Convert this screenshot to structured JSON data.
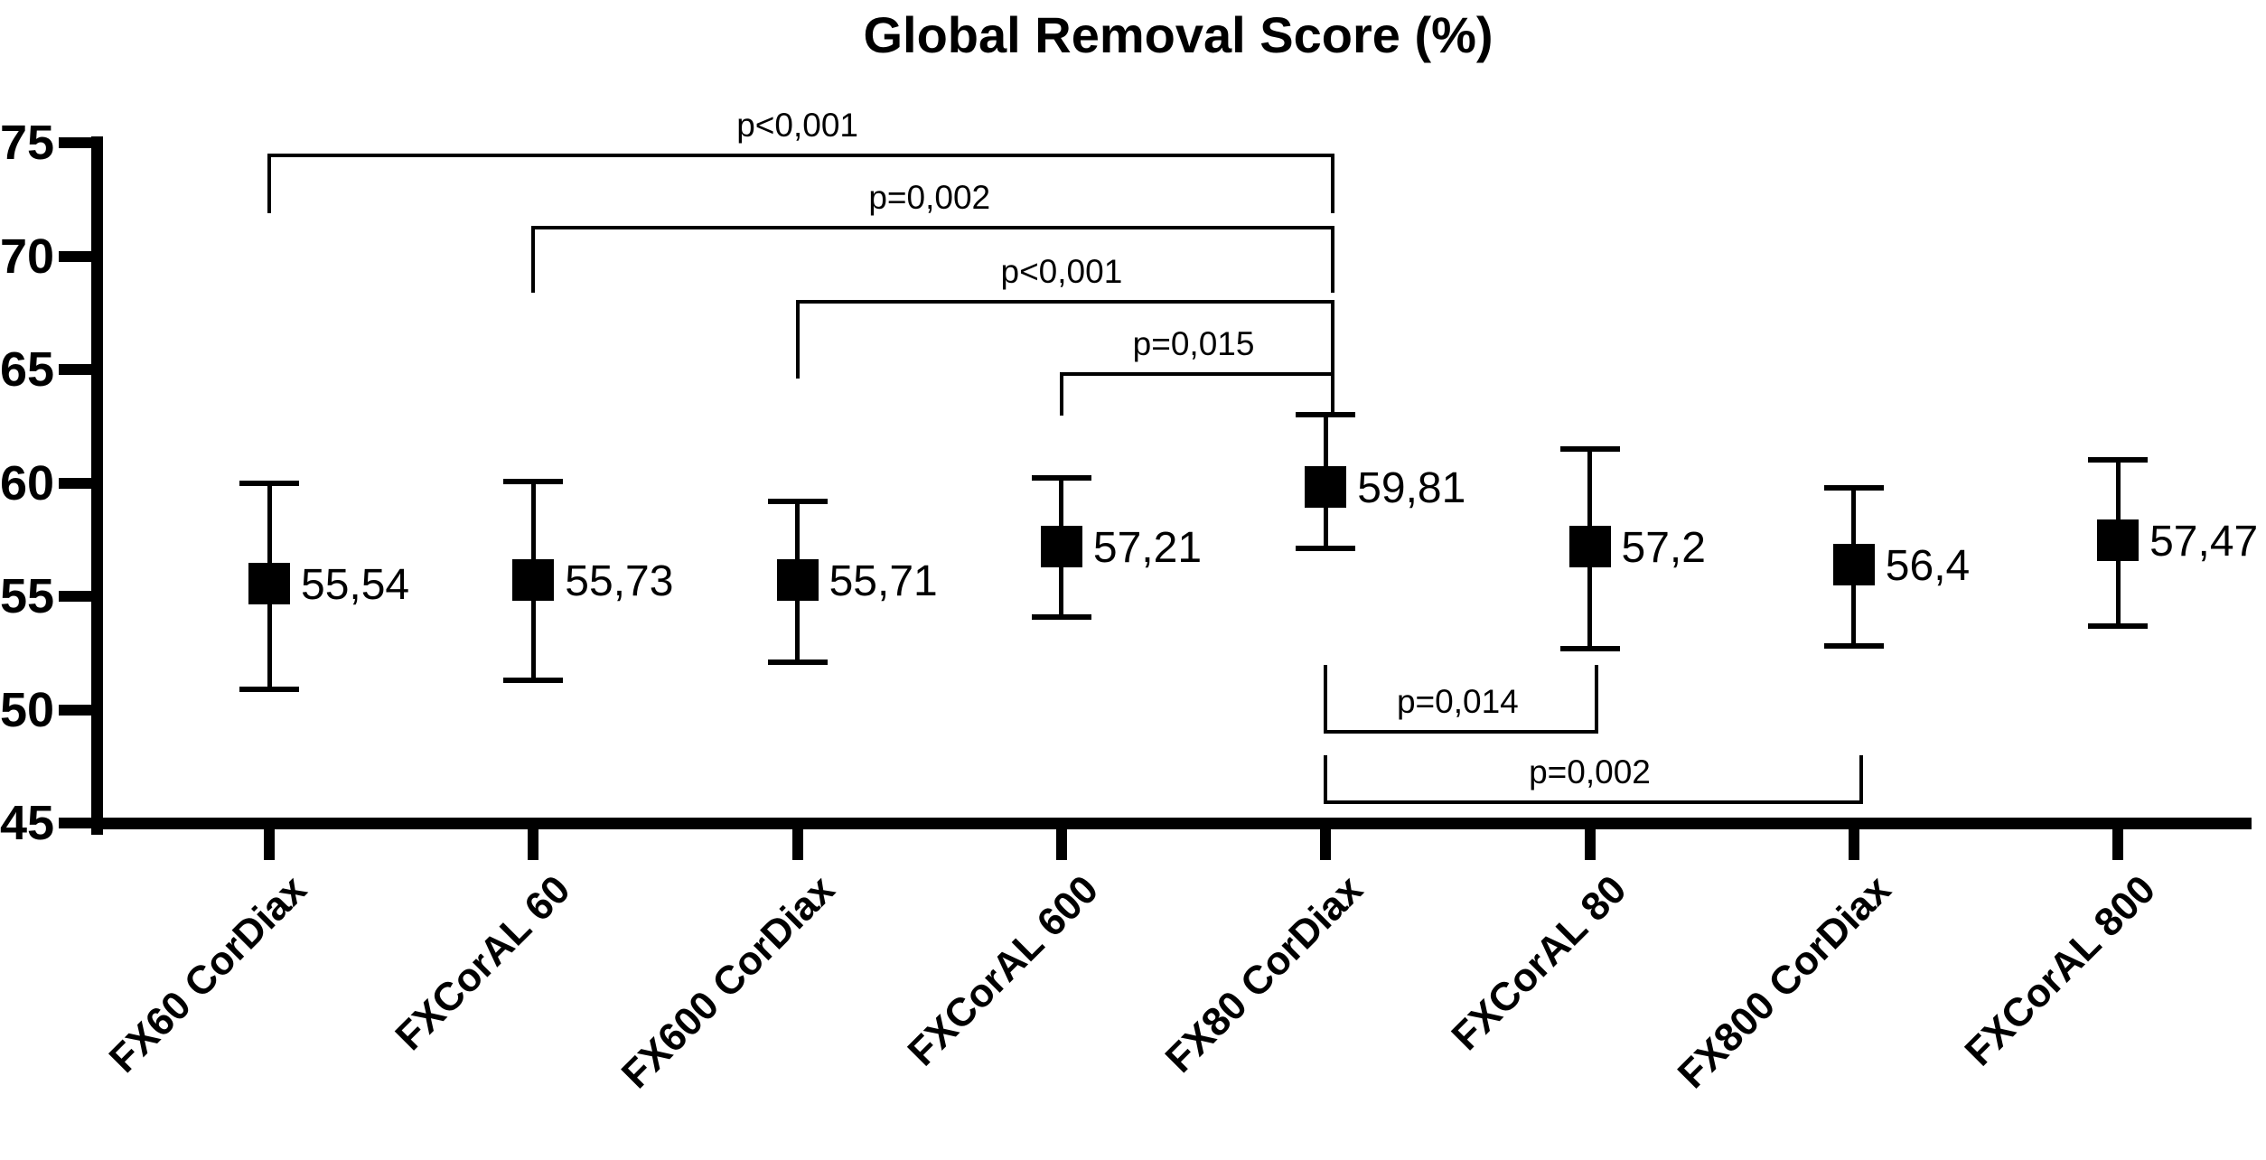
{
  "chart_data": {
    "type": "scatter",
    "title": "Global Removal Score (%)",
    "xlabel": "",
    "ylabel": "",
    "ylim": [
      45,
      75
    ],
    "yticks": [
      75,
      70,
      65,
      60,
      55,
      50,
      45
    ],
    "grid": false,
    "legend": "none",
    "decimal_separator": ",",
    "categories": [
      "FX60 CorDiax",
      "FXCorAL 60",
      "FX600 CorDiax",
      "FXCorAL 600",
      "FX80 CorDiax",
      "FXCorAL 80",
      "FX800 CorDiax",
      "FXCorAL 800"
    ],
    "series": [
      {
        "name": "Global Removal Score (%) mean with error bars",
        "values": [
          55.54,
          55.73,
          55.71,
          57.21,
          59.81,
          57.2,
          56.4,
          57.47
        ],
        "value_labels": [
          "55,54",
          "55,73",
          "55,71",
          "57,21",
          "59,81",
          "57,2",
          "56,4",
          "57,47"
        ],
        "error_upper": [
          60.0,
          60.05,
          59.2,
          60.2,
          63.0,
          61.5,
          59.8,
          61.0
        ],
        "error_lower": [
          50.9,
          51.3,
          52.1,
          54.1,
          57.1,
          52.7,
          52.8,
          53.7
        ]
      }
    ],
    "significance_brackets": [
      {
        "from": "FX60 CorDiax",
        "to": "FX80 CorDiax",
        "label": "p<0,001",
        "position": "above",
        "level": 1
      },
      {
        "from": "FXCorAL 60",
        "to": "FX80 CorDiax",
        "label": "p=0,002",
        "position": "above",
        "level": 2
      },
      {
        "from": "FX600 CorDiax",
        "to": "FX80 CorDiax",
        "label": "p<0,001",
        "position": "above",
        "level": 3
      },
      {
        "from": "FXCorAL 600",
        "to": "FX80 CorDiax",
        "label": "p=0,015",
        "position": "above",
        "level": 4
      },
      {
        "from": "FX80 CorDiax",
        "to": "FXCorAL 80",
        "label": "p=0,014",
        "position": "below",
        "level": 1
      },
      {
        "from": "FX80 CorDiax",
        "to": "FX800 CorDiax",
        "label": "p=0,002",
        "position": "below",
        "level": 2
      }
    ],
    "colors": {
      "foreground": "#000000",
      "background": "#ffffff"
    }
  }
}
